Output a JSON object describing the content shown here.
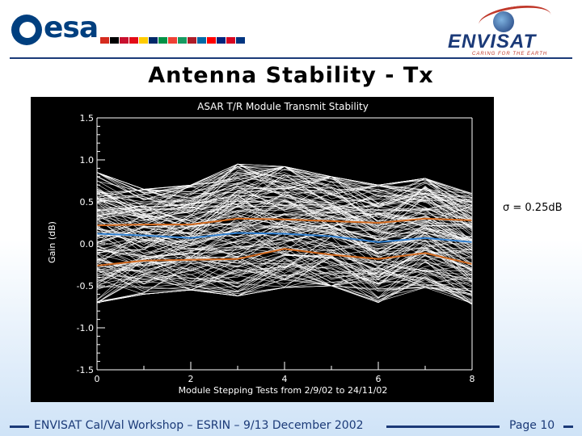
{
  "header": {
    "esa_logo_text": "esa",
    "envisat_logo_text": "ENVISAT",
    "envisat_tagline": "CARING FOR THE EARTH"
  },
  "slide": {
    "title": "Antenna Stability - Tx",
    "annotation": "σ = 0.25dB"
  },
  "footer": {
    "workshop": "ENVISAT Cal/Val Workshop – ESRIN – 9/13 December 2002",
    "page": "Page 10"
  },
  "colors": {
    "mean_line": "#2f7fd0",
    "sigma_line": "#d2691e",
    "traces": "#ffffff"
  },
  "chart_data": {
    "type": "line",
    "title": "ASAR T/R Module Transmit Stability",
    "xlabel": "Module Stepping Tests from 2/9/02 to 24/11/02",
    "ylabel": "Gain (dB)",
    "xlim": [
      0,
      8
    ],
    "ylim": [
      -1.5,
      1.5
    ],
    "x_ticks": [
      "0",
      "2",
      "4",
      "6",
      "8"
    ],
    "y_ticks": [
      "1.5",
      "1.0",
      "0.5",
      "0.0",
      "-0.5",
      "-1.0",
      "-1.5"
    ],
    "x": [
      0,
      1,
      2,
      3,
      4,
      5,
      6,
      7,
      8
    ],
    "series": [
      {
        "role": "mean",
        "values": [
          0.12,
          0.1,
          0.07,
          0.13,
          0.12,
          0.09,
          0.02,
          0.07,
          0.02
        ]
      },
      {
        "role": "upper_sigma",
        "values": [
          0.22,
          0.23,
          0.23,
          0.3,
          0.29,
          0.27,
          0.25,
          0.3,
          0.28
        ]
      },
      {
        "role": "lower_sigma",
        "values": [
          -0.26,
          -0.2,
          -0.19,
          -0.18,
          -0.06,
          -0.13,
          -0.18,
          -0.11,
          -0.24
        ]
      }
    ],
    "trace_envelope": {
      "upper": [
        0.85,
        0.65,
        0.7,
        0.95,
        0.92,
        0.8,
        0.7,
        0.78,
        0.6
      ],
      "lower": [
        -0.7,
        -0.6,
        -0.55,
        -0.62,
        -0.52,
        -0.5,
        -0.7,
        -0.52,
        -0.72
      ]
    },
    "grid": false
  }
}
